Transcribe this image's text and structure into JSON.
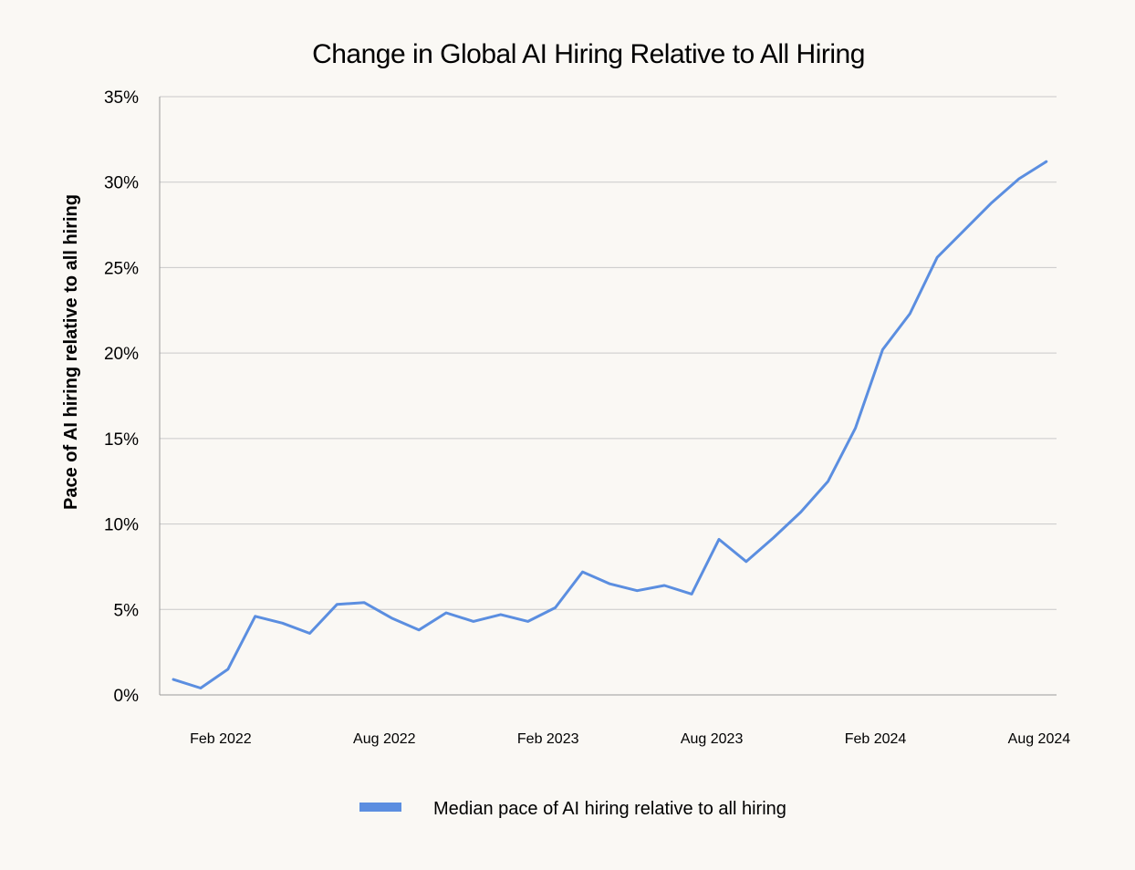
{
  "chart_data": {
    "type": "line",
    "title": "Change in Global AI Hiring Relative to All Hiring",
    "xlabel": "",
    "ylabel": "Pace of AI hiring relative to all hiring",
    "y_ticks": [
      "0%",
      "5%",
      "10%",
      "15%",
      "20%",
      "25%",
      "30%",
      "35%"
    ],
    "ylim": [
      0,
      35
    ],
    "x_ticks": [
      "Feb 2022",
      "Aug 2022",
      "Feb 2023",
      "Aug 2023",
      "Feb 2024",
      "Aug 2024"
    ],
    "x": [
      "2022-01",
      "2022-02",
      "2022-03",
      "2022-04",
      "2022-05",
      "2022-06",
      "2022-07",
      "2022-08",
      "2022-09",
      "2022-10",
      "2022-11",
      "2022-12",
      "2023-01",
      "2023-02",
      "2023-03",
      "2023-04",
      "2023-05",
      "2023-06",
      "2023-07",
      "2023-08",
      "2023-09",
      "2023-10",
      "2023-11",
      "2023-12",
      "2024-01",
      "2024-02",
      "2024-03",
      "2024-04",
      "2024-05",
      "2024-06",
      "2024-07",
      "2024-08",
      "2024-09"
    ],
    "series": [
      {
        "name": "Median pace of AI hiring relative to all hiring",
        "color": "#5b8ee0",
        "values": [
          0.9,
          0.4,
          1.5,
          4.6,
          4.2,
          3.6,
          5.3,
          5.4,
          4.5,
          3.8,
          4.8,
          4.3,
          4.7,
          4.3,
          5.1,
          7.2,
          6.5,
          6.1,
          6.4,
          5.9,
          9.1,
          7.8,
          9.2,
          10.7,
          12.5,
          15.6,
          20.2,
          22.3,
          25.6,
          27.2,
          28.8,
          30.2,
          31.2
        ]
      }
    ],
    "grid": true,
    "legend_position": "bottom-center"
  }
}
